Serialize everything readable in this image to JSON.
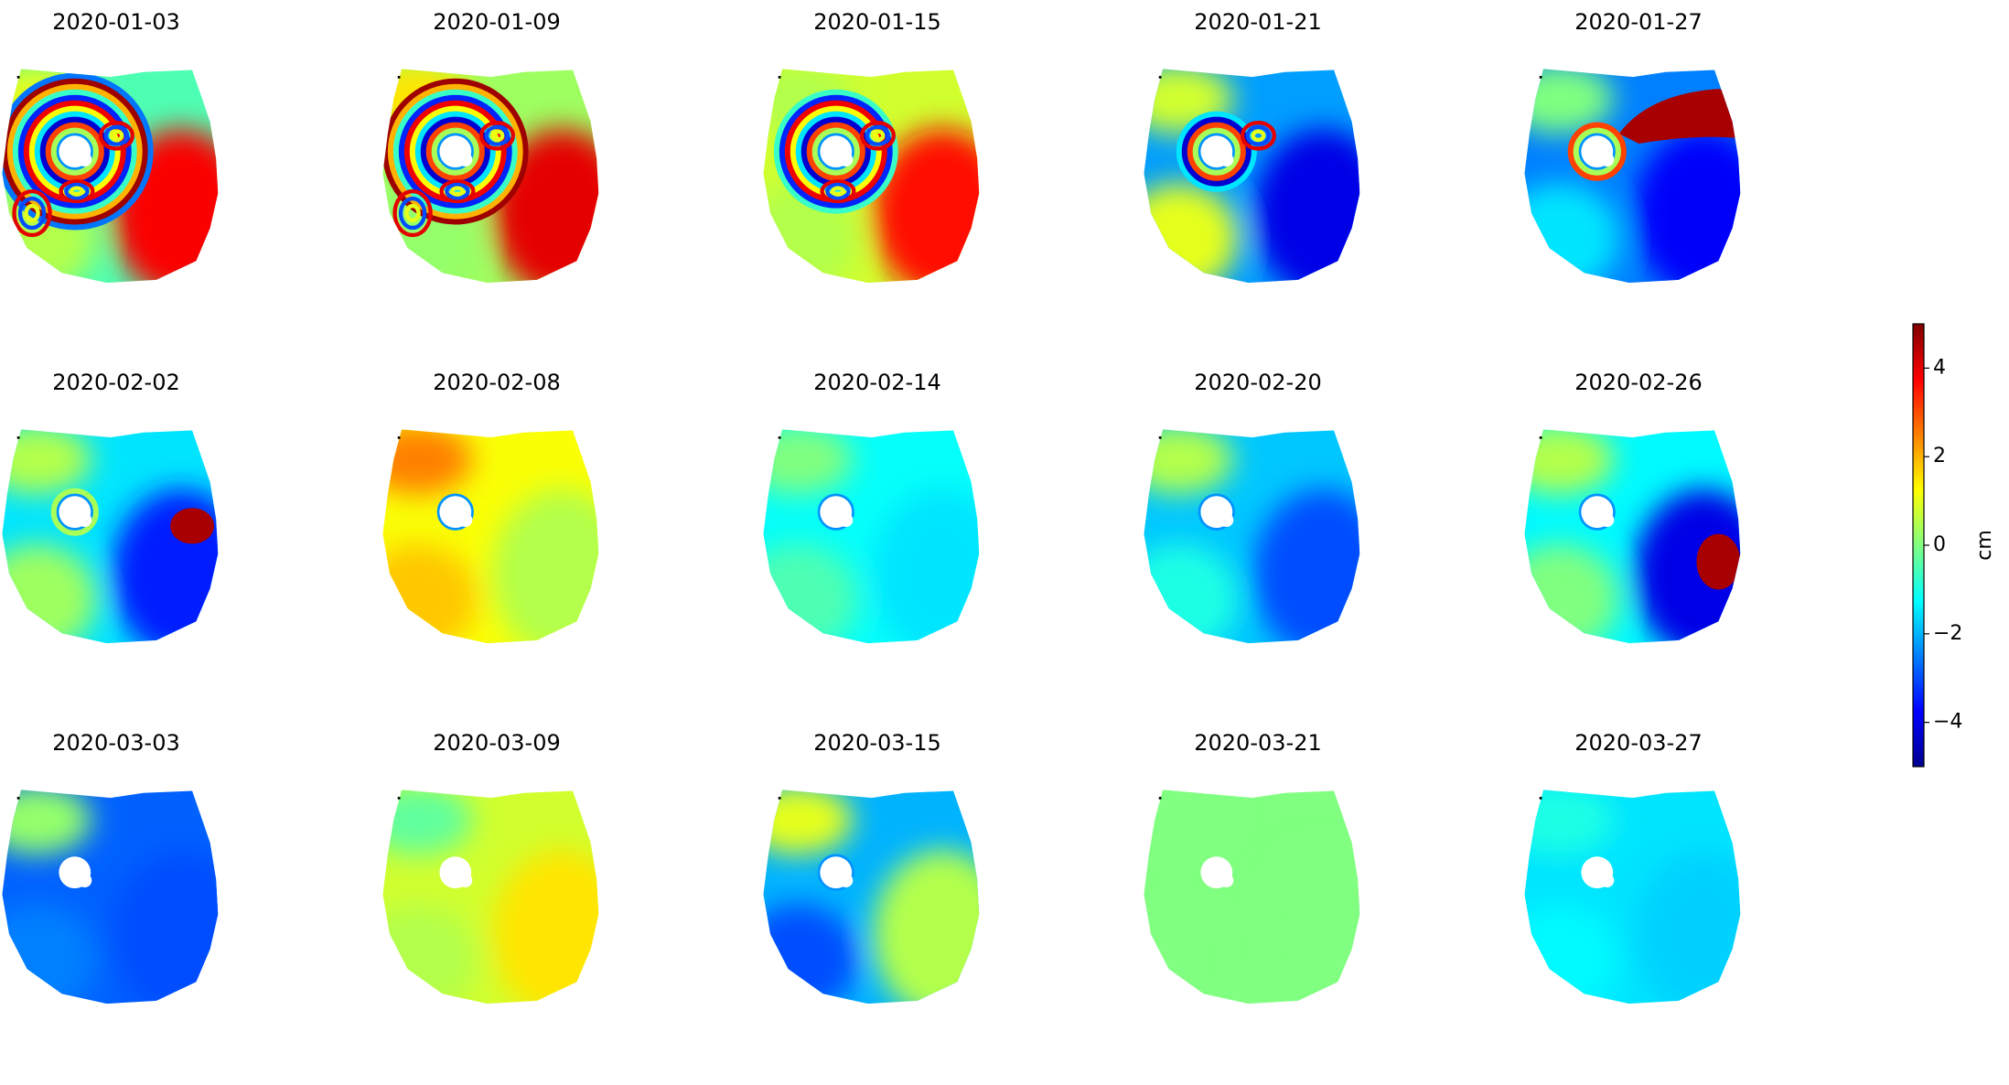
{
  "chart_data": {
    "type": "heatmap",
    "colormap": "jet",
    "vmin": -5,
    "vmax": 5,
    "colorbar": {
      "label": "cm",
      "ticks": [
        4,
        2,
        0,
        -2,
        -4
      ],
      "tick_labels": [
        "4",
        "2",
        "0",
        "−2",
        "−4"
      ]
    },
    "panels": [
      {
        "title": "2020-01-03",
        "bg": -0.5,
        "right": 3.8,
        "left": 0.5,
        "nw": 1.0,
        "rings": 12,
        "lobes": 3,
        "patch": null
      },
      {
        "title": "2020-01-09",
        "bg": 0.3,
        "right": 4.0,
        "left": 0.2,
        "nw": 1.5,
        "rings": 11,
        "lobes": 3,
        "patch": null
      },
      {
        "title": "2020-01-15",
        "bg": 0.8,
        "right": 3.6,
        "left": 0.5,
        "nw": 0.5,
        "rings": 9,
        "lobes": 2,
        "patch": null
      },
      {
        "title": "2020-01-21",
        "bg": -2.2,
        "right": -4.0,
        "left": 1.0,
        "nw": 0.8,
        "rings": 5,
        "lobes": 1,
        "patch": null
      },
      {
        "title": "2020-01-27",
        "bg": -2.5,
        "right": -3.8,
        "left": -1.5,
        "nw": 0.0,
        "rings": 3,
        "lobes": 0,
        "patch": "ne"
      },
      {
        "title": "2020-02-02",
        "bg": -1.5,
        "right": -3.5,
        "left": 0.3,
        "nw": 0.5,
        "rings": 2,
        "lobes": 0,
        "patch": "e"
      },
      {
        "title": "2020-02-08",
        "bg": 1.2,
        "right": 0.5,
        "left": 1.8,
        "nw": 2.5,
        "rings": 1,
        "lobes": 0,
        "patch": null
      },
      {
        "title": "2020-02-14",
        "bg": -1.2,
        "right": -1.5,
        "left": -0.5,
        "nw": 0.0,
        "rings": 1,
        "lobes": 0,
        "patch": null
      },
      {
        "title": "2020-02-20",
        "bg": -1.8,
        "right": -3.0,
        "left": -1.0,
        "nw": 0.5,
        "rings": 1,
        "lobes": 0,
        "patch": null
      },
      {
        "title": "2020-02-26",
        "bg": -1.3,
        "right": -4.0,
        "left": 0.0,
        "nw": 0.5,
        "rings": 1,
        "lobes": 0,
        "patch": "se"
      },
      {
        "title": "2020-03-03",
        "bg": -2.8,
        "right": -3.0,
        "left": -2.5,
        "nw": 0.2,
        "rings": 0,
        "lobes": 0,
        "patch": null
      },
      {
        "title": "2020-03-09",
        "bg": 0.8,
        "right": 1.5,
        "left": 0.5,
        "nw": -0.3,
        "rings": 0,
        "lobes": 0,
        "patch": null
      },
      {
        "title": "2020-03-15",
        "bg": -2.0,
        "right": 0.5,
        "left": -3.0,
        "nw": 1.0,
        "rings": 1,
        "lobes": 0,
        "patch": null
      },
      {
        "title": "2020-03-21",
        "bg": 0.0,
        "right": 0.0,
        "left": 0.0,
        "nw": 0.0,
        "rings": 0,
        "lobes": 0,
        "patch": null
      },
      {
        "title": "2020-03-27",
        "bg": -1.5,
        "right": -1.7,
        "left": -1.3,
        "nw": -1.0,
        "rings": 0,
        "lobes": 0,
        "patch": null
      }
    ]
  }
}
